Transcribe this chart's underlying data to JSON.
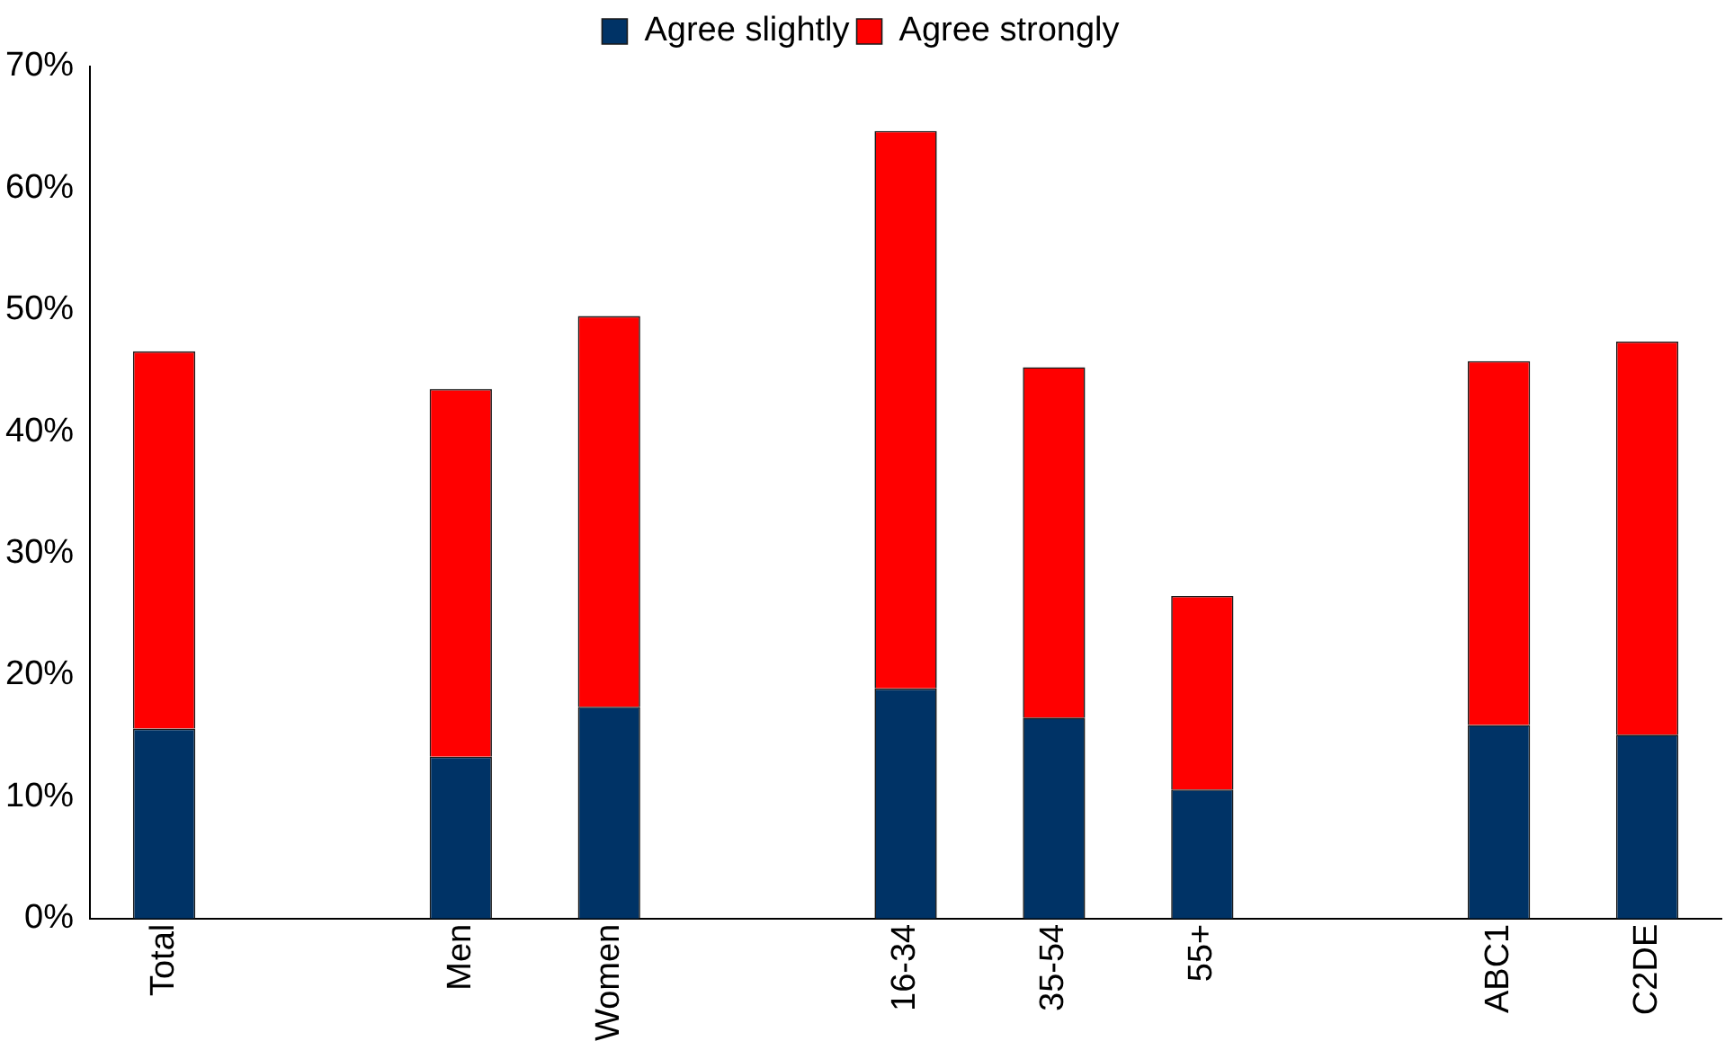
{
  "chart_data": {
    "type": "bar",
    "stacked": true,
    "legend": "top",
    "grid": false,
    "categories": [
      "Total",
      null,
      "Men",
      "Women",
      null,
      "16-34",
      "35-54",
      "55+",
      null,
      "ABC1",
      "C2DE"
    ],
    "series": [
      {
        "name": "Agree slightly",
        "color": "#003366",
        "values": [
          15.6,
          null,
          13.3,
          17.4,
          null,
          18.9,
          16.5,
          10.6,
          null,
          15.9,
          15.1
        ]
      },
      {
        "name": "Agree strongly",
        "color": "#ff0000",
        "values": [
          31.0,
          null,
          30.2,
          32.1,
          null,
          45.8,
          28.8,
          15.9,
          null,
          29.9,
          32.3
        ]
      }
    ],
    "ylim": [
      0,
      70
    ],
    "yticks": [
      {
        "value": 0,
        "label": "0%"
      },
      {
        "value": 10,
        "label": "10%"
      },
      {
        "value": 20,
        "label": "20%"
      },
      {
        "value": 30,
        "label": "30%"
      },
      {
        "value": 40,
        "label": "40%"
      },
      {
        "value": 50,
        "label": "50%"
      },
      {
        "value": 60,
        "label": "60%"
      },
      {
        "value": 70,
        "label": "70%"
      }
    ]
  }
}
